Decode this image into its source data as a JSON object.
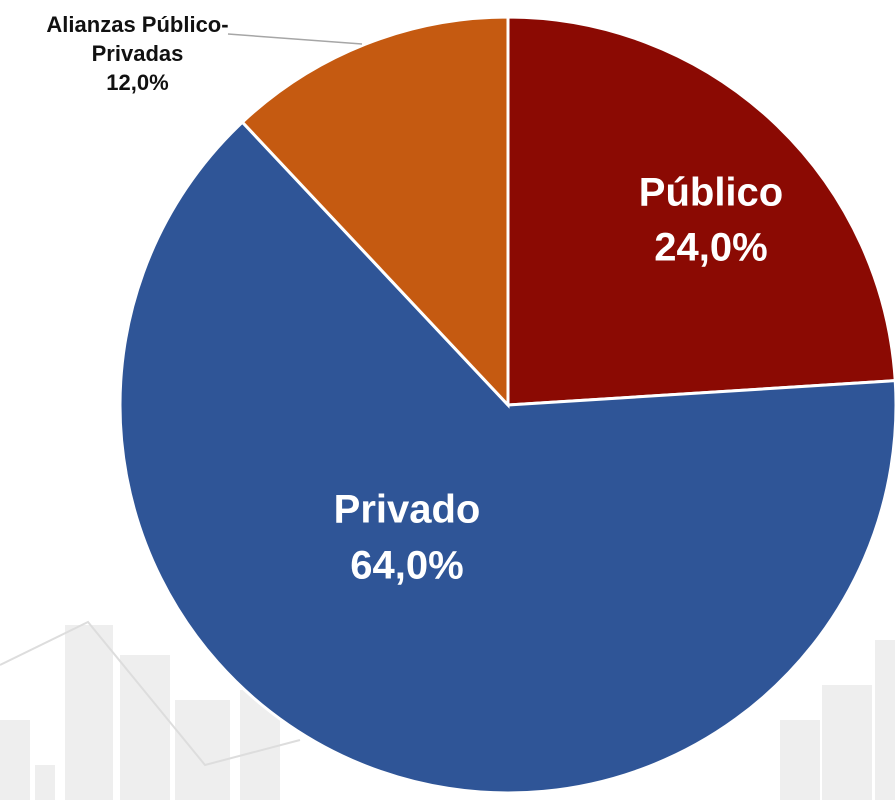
{
  "chart_data": {
    "type": "pie",
    "categories": [
      "Público",
      "Privado",
      "Alianzas Público-Privadas"
    ],
    "values": [
      24,
      64,
      12
    ],
    "value_labels": [
      "24,0%",
      "64,0%",
      "12,0%"
    ],
    "colors": [
      "#8b0a03",
      "#2f5597",
      "#c55a11"
    ]
  }
}
